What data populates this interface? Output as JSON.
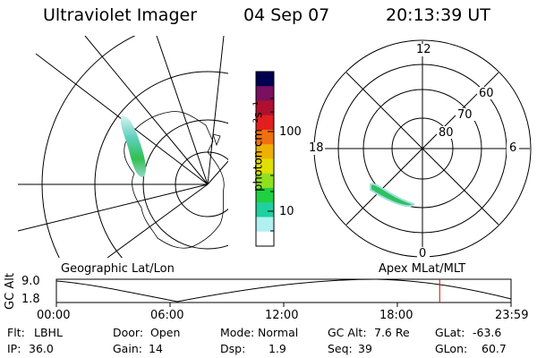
{
  "header": {
    "instrument": "Ultraviolet Imager",
    "date": "04 Sep 07",
    "time": "20:13:39 UT"
  },
  "colorbar": {
    "unit_label": "photon cm⁻²s⁻¹",
    "ticks": [
      "100",
      "10"
    ],
    "scale": "log",
    "colors": [
      "#000050",
      "#7a1060",
      "#b01030",
      "#e02020",
      "#f07010",
      "#f0b000",
      "#e0e000",
      "#90e020",
      "#20d040",
      "#20d0a0",
      "#b0f0f0",
      "#ffffff"
    ]
  },
  "left_panel": {
    "caption": "Geographic Lat/Lon"
  },
  "right_panel": {
    "caption": "Apex MLat/MLT",
    "mlt_labels": {
      "top": "12",
      "left": "18",
      "right": "6",
      "bottom": "0"
    },
    "lat_labels": [
      "60",
      "70",
      "80"
    ]
  },
  "altitude_strip": {
    "axis_label": "GC Alt",
    "y_ticks": [
      "9.0",
      "1.8"
    ],
    "x_ticks": [
      "00:00",
      "06:00",
      "12:00",
      "18:00",
      "23:59"
    ],
    "current_marker_color": "#e00000",
    "current_time_fraction": 0.843
  },
  "info": {
    "flt_label": "Flt:",
    "flt_value": "LBHL",
    "ip_label": "IP:",
    "ip_value": "36.0",
    "door_label": "Door:",
    "door_value": "Open",
    "gain_label": "Gain:",
    "gain_value": "14",
    "mode_label": "Mode:",
    "mode_value": "Normal",
    "dsp_label": "Dsp:",
    "dsp_value": "1.9",
    "gcalt_label": "GC Alt:",
    "gcalt_value": "7.6 Re",
    "seq_label": "Seq:",
    "seq_value": "39",
    "glat_label": "GLat:",
    "glat_value": "-63.6",
    "glon_label": "GLon:",
    "glon_value": "60.7"
  }
}
